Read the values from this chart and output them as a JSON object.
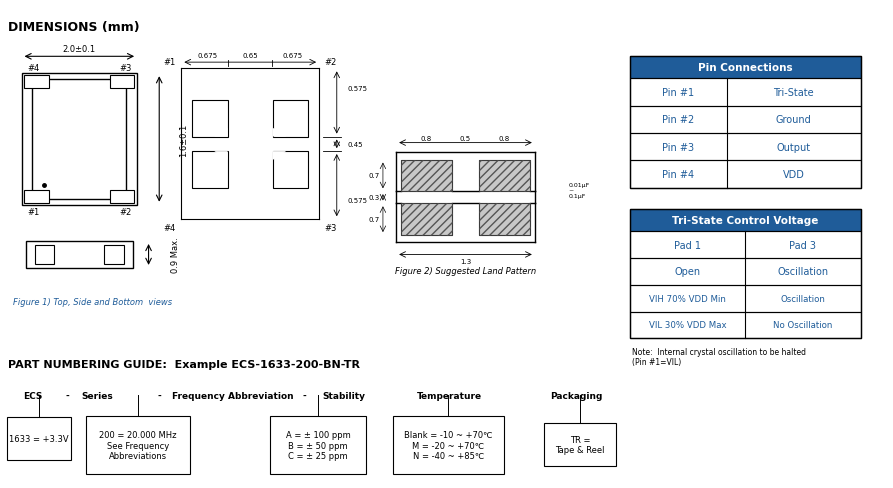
{
  "title_dimensions": "DIMENSIONS (mm)",
  "fig1_caption": "Figure 1) Top, Side and Bottom  views",
  "fig2_caption": "Figure 2) Suggested Land Pattern",
  "part_numbering_title": "PART NUMBERING GUIDE:  Example ECS-1633-200-BN-TR",
  "pin_connections_title": "Pin Connections",
  "pin_connections": [
    [
      "Pin #1",
      "Tri-State"
    ],
    [
      "Pin #2",
      "Ground"
    ],
    [
      "Pin #3",
      "Output"
    ],
    [
      "Pin #4",
      "VDD"
    ]
  ],
  "tristate_title": "Tri-State Control Voltage",
  "tristate_data": [
    [
      "Pad 1",
      "Pad 3"
    ],
    [
      "Open",
      "Oscillation"
    ],
    [
      "VIH 70% VDD Min",
      "Oscillation"
    ],
    [
      "VIL 30% VDD Max",
      "No Oscillation"
    ]
  ],
  "note_text": "Note:  Internal crystal oscillation to be halted\n(Pin #1=VIL)",
  "header_color": "#1F5C99",
  "header_text_color": "#FFFFFF",
  "cell_text_color": "#1F5C99",
  "background_color": "#FFFFFF"
}
